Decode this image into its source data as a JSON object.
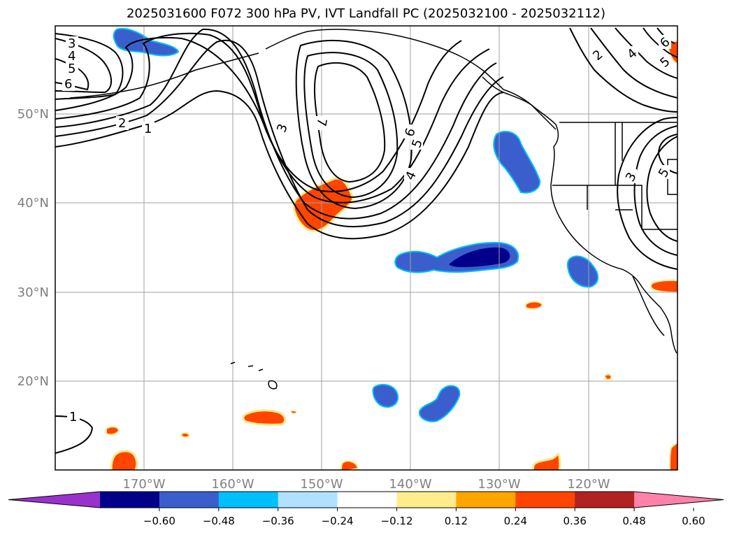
{
  "title": "2025031600 F072 300 hPa PV, IVT Landfall PC (2025032100 - 2025032112)",
  "map": {
    "lat_labels": [
      "50°N",
      "40°N",
      "30°N",
      "20°N"
    ],
    "lon_labels": [
      "170°W",
      "160°W",
      "150°W",
      "140°W",
      "130°W",
      "120°W"
    ],
    "contour_labels": [
      "3",
      "4",
      "5",
      "6",
      "2",
      "1",
      "3",
      "7",
      "6",
      "5",
      "4",
      "2",
      "4",
      "5",
      "6",
      "3",
      "5",
      "1"
    ],
    "grid_color": "#a0a0a0",
    "label_color": "#808080"
  },
  "colorbar": {
    "tick_labels": [
      "−0.60",
      "−0.48",
      "−0.36",
      "−0.24",
      "−0.12",
      "0.12",
      "0.24",
      "0.36",
      "0.48",
      "0.60"
    ],
    "colors": [
      "#9932cc",
      "#00008b",
      "#3a5fcd",
      "#00bfff",
      "#b0e2ff",
      "#ffffff",
      "#ffec8b",
      "#ffa500",
      "#ff4500",
      "#b22222",
      "#ff82ab"
    ]
  }
}
